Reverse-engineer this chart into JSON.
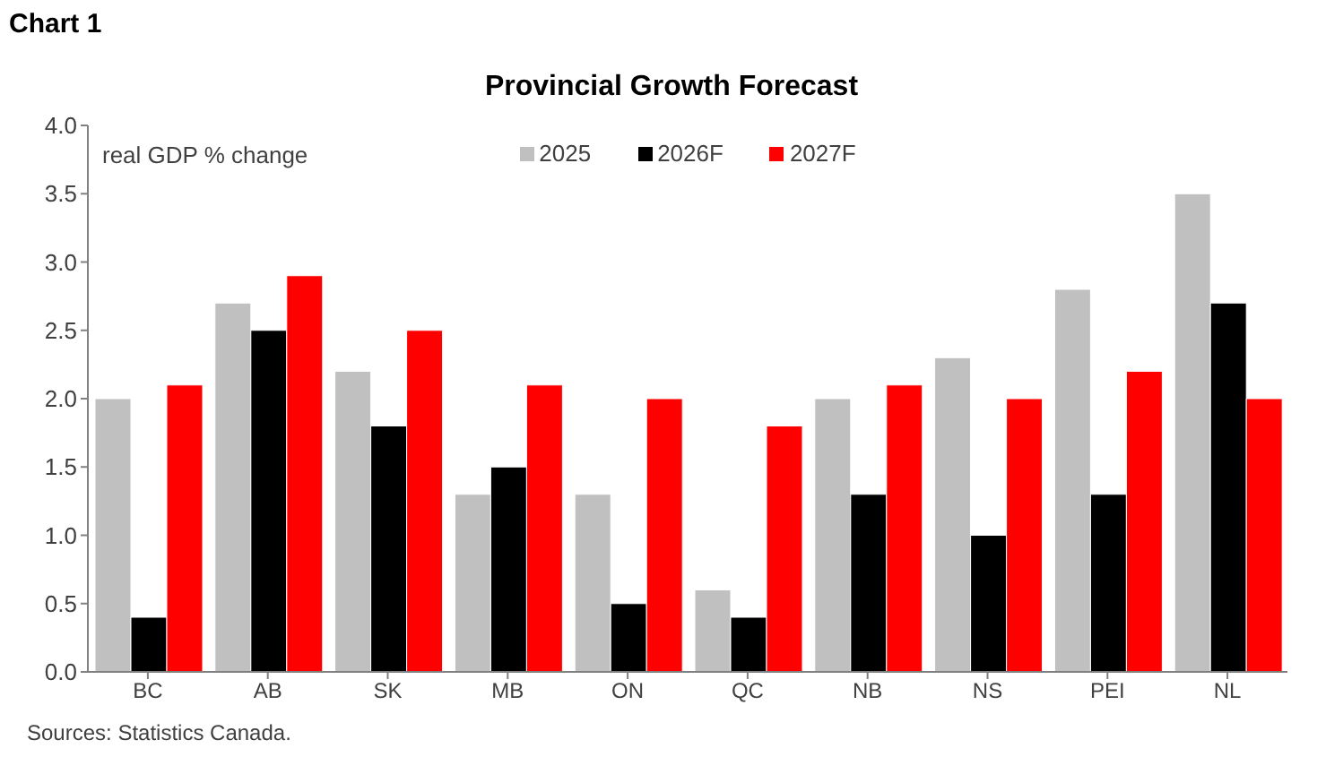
{
  "chart_data": {
    "type": "bar",
    "title": "Provincial Growth Forecast",
    "ylabel": "real GDP % change",
    "categories": [
      "BC",
      "AB",
      "SK",
      "MB",
      "ON",
      "QC",
      "NB",
      "NS",
      "PEI",
      "NL"
    ],
    "series": [
      {
        "name": "2025",
        "color": "#c0c0c0",
        "values": [
          2.0,
          2.7,
          2.2,
          1.3,
          1.3,
          0.6,
          2.0,
          2.3,
          2.8,
          3.5
        ]
      },
      {
        "name": "2026F",
        "color": "#000000",
        "values": [
          0.4,
          2.5,
          1.8,
          1.5,
          0.5,
          0.4,
          1.3,
          1.0,
          1.3,
          2.7
        ]
      },
      {
        "name": "2027F",
        "color": "#ff0000",
        "values": [
          2.1,
          2.9,
          2.5,
          2.1,
          2.0,
          1.8,
          2.1,
          2.0,
          2.2,
          2.0
        ]
      }
    ],
    "ylim": [
      0,
      4
    ],
    "yticks": [
      {
        "value": 0,
        "label": "0.0"
      },
      0.5,
      {
        "value": 1,
        "label": "1.0"
      },
      1.5,
      {
        "value": 2,
        "label": "2.0"
      },
      2.5,
      {
        "value": 3,
        "label": "3.0"
      },
      3.5,
      {
        "value": 4,
        "label": "4.0"
      }
    ],
    "legend": "top",
    "annotations": [
      "Chart 1",
      "Sources: Statistics Canada."
    ]
  }
}
